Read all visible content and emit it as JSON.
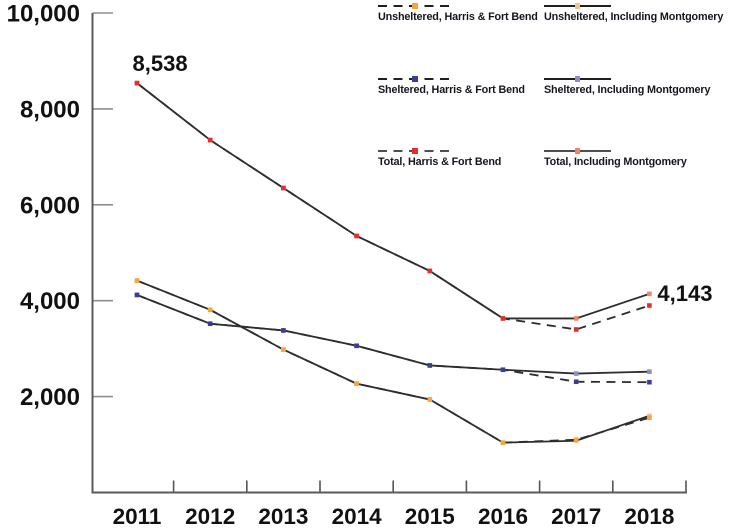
{
  "page": {
    "background": "#ffffff"
  },
  "chart_data": {
    "type": "line",
    "title": "",
    "xlabel": "",
    "ylabel": "",
    "x": [
      2011,
      2012,
      2013,
      2014,
      2015,
      2016,
      2017,
      2018
    ],
    "ylim": [
      0,
      10000
    ],
    "yticks": [
      2000,
      4000,
      6000,
      8000,
      10000
    ],
    "grid": false,
    "legend_position": "top-right",
    "axis_color": "#5a5a5a",
    "y_tick_color": "#8f8f8f",
    "x_tick_color": "#555555",
    "line_color": "#2d2d2d",
    "text_color": "#111111",
    "series": [
      {
        "name": "Unsheltered, Harris & Fort Bend",
        "line_style": "dashed",
        "marker_color": "#F5A53B",
        "legend_line_color": "#1f1f1f",
        "values": [
          4420,
          3810,
          2980,
          2270,
          1940,
          1040,
          1100,
          1560
        ]
      },
      {
        "name": "Unsheltered, Including Montgomery",
        "line_style": "solid",
        "marker_color": "#F6C289",
        "legend_line_color": "#1f1f1f",
        "values": [
          4420,
          3810,
          2980,
          2270,
          1940,
          1040,
          1080,
          1600
        ]
      },
      {
        "name": "Sheltered, Harris & Fort Bend",
        "line_style": "dashed",
        "marker_color": "#3B3B9E",
        "legend_line_color": "#1f1f1f",
        "values": [
          4120,
          3520,
          3380,
          3060,
          2650,
          2560,
          2310,
          2300
        ]
      },
      {
        "name": "Sheltered, Including Montgomery",
        "line_style": "solid",
        "marker_color": "#8C8CCE",
        "legend_line_color": "#1f1f1f",
        "values": [
          4120,
          3520,
          3380,
          3060,
          2650,
          2560,
          2480,
          2520
        ]
      },
      {
        "name": "Total, Harris & Fort Bend",
        "line_style": "dashed",
        "marker_color": "#E52D2D",
        "legend_line_color": "#4f4f4f",
        "values": [
          8538,
          7350,
          6350,
          5350,
          4620,
          3630,
          3400,
          3900
        ]
      },
      {
        "name": "Total, Including Montgomery",
        "line_style": "solid",
        "marker_color": "#F2846A",
        "legend_line_color": "#4f4f4f",
        "values": [
          8538,
          7350,
          6350,
          5350,
          4620,
          3630,
          3630,
          4143
        ]
      }
    ],
    "annotations": [
      {
        "text": "8,538",
        "x": 2011,
        "y": 8538,
        "placement": "above-left"
      },
      {
        "text": "4,143",
        "x": 2018,
        "y": 4143,
        "placement": "right"
      }
    ]
  }
}
